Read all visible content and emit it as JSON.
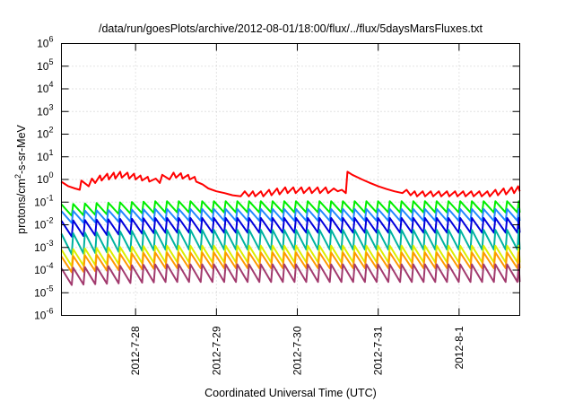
{
  "chart_data": {
    "type": "line",
    "title": "/data/run/goesPlots/archive/2012-08-01/18:00/flux/../flux/5daysMarsFluxes.txt",
    "xlabel": "Coordinated Universal Time (UTC)",
    "ylabel_base": "protons/cm",
    "ylabel_sup": "2",
    "ylabel_rest": "-s-sr-MeV",
    "yscale": "log",
    "ylim": [
      1e-06,
      1000000.0
    ],
    "xlim": [
      "2012-07-27 02:00",
      "2012-08-01 18:00"
    ],
    "grid": true,
    "legend": "none",
    "y_ticks": [
      {
        "exp": -6,
        "base": "10",
        "sup": "-6"
      },
      {
        "exp": -5,
        "base": "10",
        "sup": "-5"
      },
      {
        "exp": -4,
        "base": "10",
        "sup": "-4"
      },
      {
        "exp": -3,
        "base": "10",
        "sup": "-3"
      },
      {
        "exp": -2,
        "base": "10",
        "sup": "-2"
      },
      {
        "exp": -1,
        "base": "10",
        "sup": "-1"
      },
      {
        "exp": 0,
        "base": "10",
        "sup": "0"
      },
      {
        "exp": 1,
        "base": "10",
        "sup": "1"
      },
      {
        "exp": 2,
        "base": "10",
        "sup": "2"
      },
      {
        "exp": 3,
        "base": "10",
        "sup": "3"
      },
      {
        "exp": 4,
        "base": "10",
        "sup": "4"
      },
      {
        "exp": 5,
        "base": "10",
        "sup": "5"
      },
      {
        "exp": 6,
        "base": "10",
        "sup": "6"
      }
    ],
    "x_ticks": [
      {
        "label": "2012-7-28",
        "day": 28
      },
      {
        "label": "2012-7-29",
        "day": 29
      },
      {
        "label": "2012-7-30",
        "day": 30
      },
      {
        "label": "2012-7-31",
        "day": 31
      },
      {
        "label": "2012-8-1",
        "day": 32
      }
    ],
    "series": [
      {
        "color": "#ff0000",
        "x": [
          27.08,
          27.17,
          27.25,
          27.31,
          27.33,
          27.42,
          27.46,
          27.5,
          27.56,
          27.58,
          27.65,
          27.67,
          27.73,
          27.75,
          27.81,
          27.83,
          27.9,
          27.92,
          27.98,
          28.0,
          28.06,
          28.08,
          28.15,
          28.17,
          28.25,
          28.3,
          28.33,
          28.42,
          28.47,
          28.5,
          28.56,
          28.58,
          28.65,
          28.67,
          28.73,
          28.75,
          28.83,
          28.9,
          29.0,
          29.1,
          29.2,
          29.3,
          29.35,
          29.4,
          29.45,
          29.48,
          29.55,
          29.58,
          29.65,
          29.68,
          29.75,
          29.78,
          29.85,
          29.88,
          29.95,
          29.98,
          30.05,
          30.08,
          30.15,
          30.18,
          30.25,
          30.28,
          30.35,
          30.38,
          30.45,
          30.5,
          30.55,
          30.6,
          30.62,
          30.68,
          30.8,
          30.9,
          31.0,
          31.1,
          31.2,
          31.3,
          31.35,
          31.4,
          31.45,
          31.48,
          31.55,
          31.58,
          31.65,
          31.68,
          31.75,
          31.78,
          31.85,
          31.88,
          31.95,
          31.98,
          32.05,
          32.08,
          32.15,
          32.18,
          32.25,
          32.28,
          32.35,
          32.38,
          32.45,
          32.48,
          32.55,
          32.58,
          32.65,
          32.68,
          32.73,
          32.75
        ],
        "values": [
          0.8,
          0.5,
          0.4,
          0.35,
          0.9,
          0.5,
          1.1,
          0.7,
          1.5,
          0.9,
          1.8,
          1.0,
          2.0,
          1.1,
          2.2,
          1.2,
          2.0,
          1.1,
          1.8,
          1.0,
          1.5,
          0.9,
          1.3,
          0.8,
          1.1,
          0.7,
          1.6,
          1.0,
          2.0,
          1.2,
          1.9,
          1.1,
          1.6,
          1.0,
          1.3,
          0.8,
          0.6,
          0.4,
          0.3,
          0.25,
          0.2,
          0.18,
          0.3,
          0.18,
          0.3,
          0.18,
          0.3,
          0.18,
          0.35,
          0.2,
          0.4,
          0.22,
          0.45,
          0.25,
          0.45,
          0.25,
          0.45,
          0.25,
          0.45,
          0.25,
          0.45,
          0.25,
          0.45,
          0.25,
          0.4,
          0.3,
          0.35,
          0.25,
          2.2,
          1.6,
          1.0,
          0.7,
          0.5,
          0.38,
          0.3,
          0.25,
          0.35,
          0.2,
          0.3,
          0.18,
          0.3,
          0.18,
          0.3,
          0.18,
          0.3,
          0.18,
          0.3,
          0.18,
          0.3,
          0.18,
          0.3,
          0.18,
          0.3,
          0.18,
          0.3,
          0.18,
          0.3,
          0.18,
          0.35,
          0.2,
          0.4,
          0.22,
          0.45,
          0.25,
          0.5,
          0.3
        ]
      },
      {
        "color": "#00ee00",
        "saw": {
          "top": 0.11,
          "bottom": 0.035,
          "start_top": 0.08,
          "start_bottom": 0.025,
          "period": 0.145
        }
      },
      {
        "color": "#2288ff",
        "saw": {
          "top": 0.05,
          "bottom": 0.015,
          "start_top": 0.04,
          "start_bottom": 0.012,
          "period": 0.145
        }
      },
      {
        "color": "#0000dd",
        "saw": {
          "top": 0.02,
          "bottom": 0.0045,
          "start_top": 0.015,
          "start_bottom": 0.003,
          "period": 0.145
        }
      },
      {
        "color": "#00b3a0",
        "saw": {
          "top": 0.006,
          "bottom": 0.0008,
          "start_top": 0.004,
          "start_bottom": 0.0005,
          "period": 0.145
        }
      },
      {
        "color": "#ddee00",
        "saw": {
          "top": 0.0012,
          "bottom": 0.00022,
          "start_top": 0.0008,
          "start_bottom": 0.00015,
          "period": 0.145
        }
      },
      {
        "color": "#ff9900",
        "saw": {
          "top": 0.0006,
          "bottom": 0.00012,
          "start_top": 0.0004,
          "start_bottom": 8e-05,
          "period": 0.145
        }
      },
      {
        "color": "#a23a6e",
        "saw": {
          "top": 0.00018,
          "bottom": 3e-05,
          "start_top": 0.00012,
          "start_bottom": 2.2e-05,
          "period": 0.145
        }
      }
    ]
  }
}
